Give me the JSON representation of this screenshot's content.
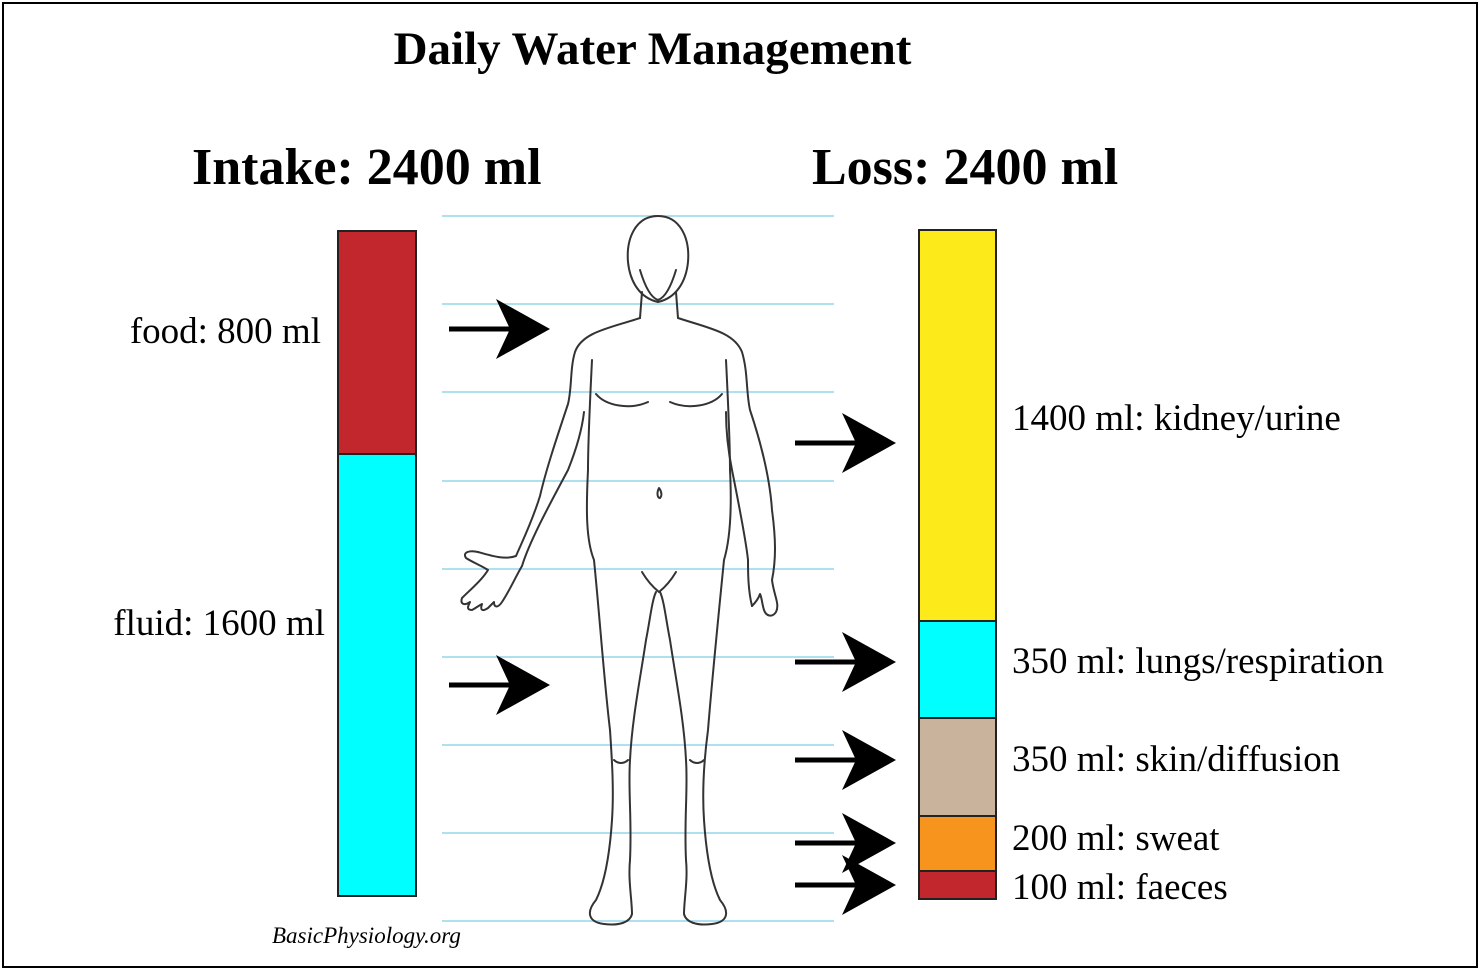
{
  "title": "Daily Water Management",
  "intake": {
    "heading": "Intake: 2400 ml",
    "segments": [
      {
        "label": "food: 800 ml",
        "value": 800,
        "color": "#c1272d"
      },
      {
        "label": "fluid: 1600 ml",
        "value": 1600,
        "color": "#00ffff"
      }
    ]
  },
  "loss": {
    "heading": "Loss: 2400 ml",
    "segments": [
      {
        "label": "1400 ml: kidney/urine",
        "value": 1400,
        "color": "#fdea1a"
      },
      {
        "label": "350 ml: lungs/respiration",
        "value": 350,
        "color": "#00ffff"
      },
      {
        "label": "350 ml: skin/diffusion",
        "value": 350,
        "color": "#c9b39c"
      },
      {
        "label": "200 ml: sweat",
        "value": 200,
        "color": "#f7941d"
      },
      {
        "label": "100 ml: faeces",
        "value": 100,
        "color": "#c1272d"
      }
    ]
  },
  "credit": "BasicPhysiology.org",
  "icons": {
    "figure": "human-body-outline-icon",
    "arrow": "right-arrow-icon"
  },
  "colors": {
    "guide_lines": "#aee0f0",
    "outline": "#222222"
  }
}
